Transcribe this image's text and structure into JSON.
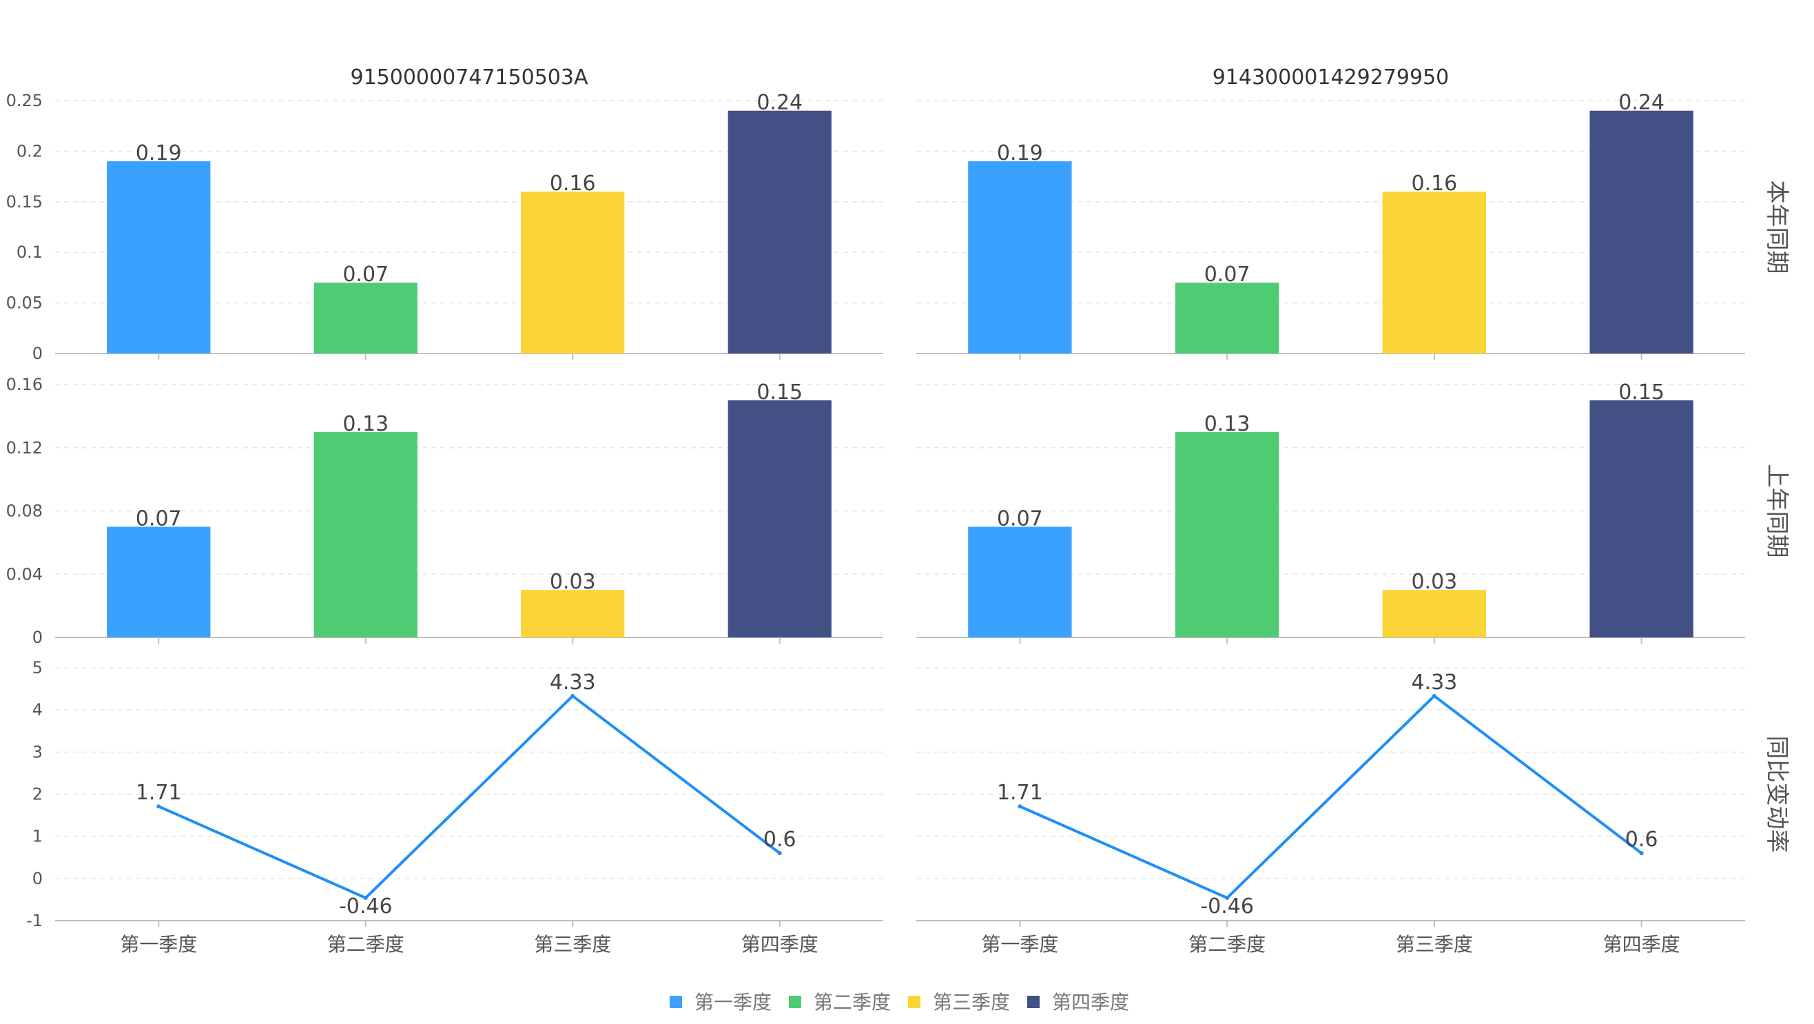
{
  "chart_data": {
    "type": "bar",
    "layout": "faceted-grid",
    "columns": [
      "91500000747150503A",
      "914300001429279950"
    ],
    "categories": [
      "第一季度",
      "第二季度",
      "第三季度",
      "第四季度"
    ],
    "colors": {
      "第一季度": "#3ba1ff",
      "第二季度": "#4fcb74",
      "第三季度": "#fbd437",
      "第四季度": "#435086",
      "line": "#1f8ff5"
    },
    "rows": [
      {
        "label": "本年同期",
        "type": "bar",
        "ylim": [
          0,
          0.25
        ],
        "yticks": [
          0,
          0.05,
          0.1,
          0.15,
          0.2,
          0.25
        ],
        "ytick_labels": [
          "0",
          "0.05",
          "0.1",
          "0.15",
          "0.2",
          "0.25"
        ],
        "values": [
          [
            0.19,
            0.07,
            0.16,
            0.24
          ],
          [
            0.19,
            0.07,
            0.16,
            0.24
          ]
        ],
        "value_labels": [
          [
            "0.19",
            "0.07",
            "0.16",
            "0.24"
          ],
          [
            "0.19",
            "0.07",
            "0.16",
            "0.24"
          ]
        ]
      },
      {
        "label": "上年同期",
        "type": "bar",
        "ylim": [
          0,
          0.16
        ],
        "yticks": [
          0,
          0.04,
          0.08,
          0.12,
          0.16
        ],
        "ytick_labels": [
          "0",
          "0.04",
          "0.08",
          "0.12",
          "0.16"
        ],
        "values": [
          [
            0.07,
            0.13,
            0.03,
            0.15
          ],
          [
            0.07,
            0.13,
            0.03,
            0.15
          ]
        ],
        "value_labels": [
          [
            "0.07",
            "0.13",
            "0.03",
            "0.15"
          ],
          [
            "0.07",
            "0.13",
            "0.03",
            "0.15"
          ]
        ]
      },
      {
        "label": "同比变动率",
        "type": "line",
        "ylim": [
          -1,
          5
        ],
        "yticks": [
          -1,
          0,
          1,
          2,
          3,
          4,
          5
        ],
        "ytick_labels": [
          "-1",
          "0",
          "1",
          "2",
          "3",
          "4",
          "5"
        ],
        "values": [
          [
            1.71,
            -0.46,
            4.33,
            0.6
          ],
          [
            1.71,
            -0.46,
            4.33,
            0.6
          ]
        ],
        "value_labels": [
          [
            "1.71",
            "-0.46",
            "4.33",
            "0.6"
          ],
          [
            "1.71",
            "-0.46",
            "4.33",
            "0.6"
          ]
        ]
      }
    ],
    "legend": {
      "position": "bottom-center",
      "items": [
        "第一季度",
        "第二季度",
        "第三季度",
        "第四季度"
      ]
    }
  }
}
